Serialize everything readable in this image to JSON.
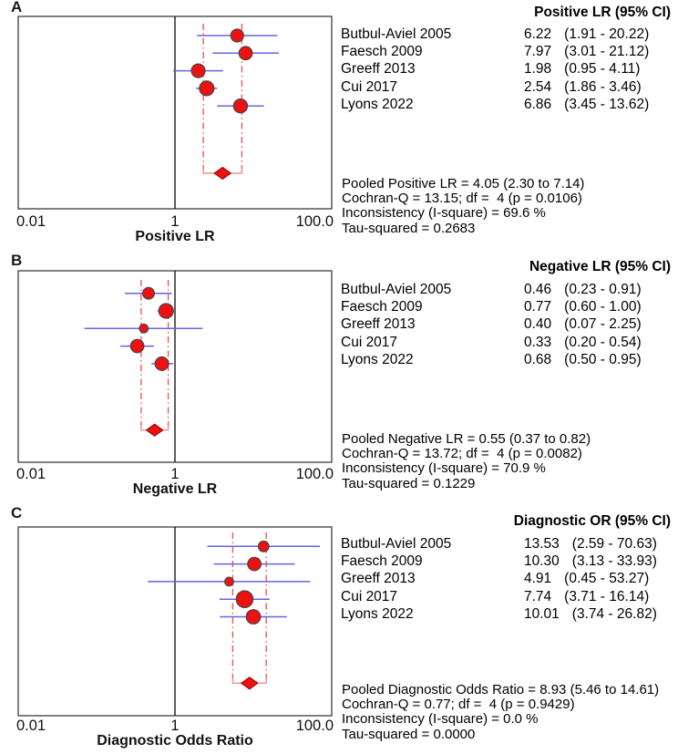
{
  "figure": {
    "background": "#ffffff",
    "description_labels": [
      "A",
      "B",
      "C"
    ]
  },
  "colors": {
    "point_fill": "#ed1111",
    "point_stroke": "#454545",
    "ci_line": "#6565de",
    "pooled_dash": "#f24b4b",
    "bracket": "#f69090",
    "diamond_fill": "#ed1111",
    "diamond_stroke": "#9c0000",
    "frame": "#4a4a4a",
    "unity_line": "#1a1a1a",
    "text": "#000000"
  },
  "chart_data": [
    {
      "type": "forest",
      "panel": "A",
      "xlabel": "Positive LR",
      "column_header": "Positive LR (95% CI)",
      "x_scale": "log10",
      "x_range": [
        0.01,
        100
      ],
      "x_ticks": [
        "0.01",
        "1",
        "100.0"
      ],
      "unity_line_at": 1,
      "studies": [
        {
          "name": "Butbul-Aviel 2005",
          "value": 6.22,
          "ci": [
            1.91,
            20.22
          ],
          "value_text": "6.22",
          "ci_text": "(1.91 - 20.22)",
          "weight_radius": 7.0
        },
        {
          "name": "Faesch 2009",
          "value": 7.97,
          "ci": [
            3.01,
            21.12
          ],
          "value_text": "7.97",
          "ci_text": "(3.01 - 21.12)",
          "weight_radius": 7.3
        },
        {
          "name": "Greeff 2013",
          "value": 1.98,
          "ci": [
            0.95,
            4.11
          ],
          "value_text": "1.98",
          "ci_text": "(0.95 - 4.11)",
          "weight_radius": 7.5
        },
        {
          "name": "Cui 2017",
          "value": 2.54,
          "ci": [
            1.86,
            3.46
          ],
          "value_text": "2.54",
          "ci_text": "(1.86 - 3.46)",
          "weight_radius": 8.0
        },
        {
          "name": "Lyons 2022",
          "value": 6.86,
          "ci": [
            3.45,
            13.62
          ],
          "value_text": "6.86",
          "ci_text": "(3.45 - 13.62)",
          "weight_radius": 7.6
        }
      ],
      "pooled": {
        "estimate": 4.05,
        "ci": [
          2.3,
          7.14
        ]
      },
      "stats_lines": [
        "Pooled Positive LR = 4.05 (2.30 to 7.14)",
        "Cochran-Q = 13.15; df =  4 (p = 0.0106)",
        "Inconsistency (I-square) = 69.6 %",
        "Tau-squared = 0.2683"
      ]
    },
    {
      "type": "forest",
      "panel": "B",
      "xlabel": "Negative LR",
      "column_header": "Negative LR (95% CI)",
      "x_scale": "log10",
      "x_range": [
        0.01,
        100
      ],
      "x_ticks": [
        "0.01",
        "1",
        "100.0"
      ],
      "unity_line_at": 1,
      "studies": [
        {
          "name": "Butbul-Aviel 2005",
          "value": 0.46,
          "ci": [
            0.23,
            0.91
          ],
          "value_text": "0.46",
          "ci_text": "(0.23 - 0.91)",
          "weight_radius": 6.4
        },
        {
          "name": "Faesch 2009",
          "value": 0.77,
          "ci": [
            0.6,
            1.0
          ],
          "value_text": "0.77",
          "ci_text": "(0.60 - 1.00)",
          "weight_radius": 8.0
        },
        {
          "name": "Greeff 2013",
          "value": 0.4,
          "ci": [
            0.07,
            2.25
          ],
          "value_text": "0.40",
          "ci_text": "(0.07 - 2.25)",
          "weight_radius": 4.8
        },
        {
          "name": "Cui 2017",
          "value": 0.33,
          "ci": [
            0.2,
            0.54
          ],
          "value_text": "0.33",
          "ci_text": "(0.20 - 0.54)",
          "weight_radius": 7.3
        },
        {
          "name": "Lyons 2022",
          "value": 0.68,
          "ci": [
            0.5,
            0.95
          ],
          "value_text": "0.68",
          "ci_text": "(0.50 - 0.95)",
          "weight_radius": 7.4
        }
      ],
      "pooled": {
        "estimate": 0.55,
        "ci": [
          0.37,
          0.82
        ]
      },
      "stats_lines": [
        "Pooled Negative LR = 0.55 (0.37 to 0.82)",
        "Cochran-Q = 13.72; df =  4 (p = 0.0082)",
        "Inconsistency (I-square) = 70.9 %",
        "Tau-squared = 0.1229"
      ]
    },
    {
      "type": "forest",
      "panel": "C",
      "xlabel": "Diagnostic Odds Ratio",
      "column_header": "Diagnostic OR (95% CI)",
      "x_scale": "log10",
      "x_range": [
        0.01,
        100
      ],
      "x_ticks": [
        "0.01",
        "1",
        "100.0"
      ],
      "unity_line_at": 1,
      "studies": [
        {
          "name": "Butbul-Aviel 2005",
          "value": 13.53,
          "ci": [
            2.59,
            70.63
          ],
          "value_text": "13.53",
          "ci_text": "(2.59 - 70.63)",
          "weight_radius": 5.8
        },
        {
          "name": "Faesch 2009",
          "value": 10.3,
          "ci": [
            3.13,
            33.93
          ],
          "value_text": "10.30",
          "ci_text": "(3.13 - 33.93)",
          "weight_radius": 7.3
        },
        {
          "name": "Greeff 2013",
          "value": 4.91,
          "ci": [
            0.45,
            53.27
          ],
          "value_text": "4.91",
          "ci_text": "(0.45 - 53.27)",
          "weight_radius": 4.8
        },
        {
          "name": "Cui 2017",
          "value": 7.74,
          "ci": [
            3.71,
            16.14
          ],
          "value_text": "7.74",
          "ci_text": "(3.71 - 16.14)",
          "weight_radius": 9.2
        },
        {
          "name": "Lyons 2022",
          "value": 10.01,
          "ci": [
            3.74,
            26.82
          ],
          "value_text": "10.01",
          "ci_text": "(3.74 - 26.82)",
          "weight_radius": 7.8
        }
      ],
      "pooled": {
        "estimate": 8.93,
        "ci": [
          5.46,
          14.61
        ]
      },
      "stats_lines": [
        "Pooled Diagnostic Odds Ratio = 8.93 (5.46 to 14.61)",
        "Cochran-Q = 0.77; df =  4 (p = 0.9429)",
        "Inconsistency (I-square) = 0.0 %",
        "Tau-squared = 0.0000"
      ]
    }
  ]
}
